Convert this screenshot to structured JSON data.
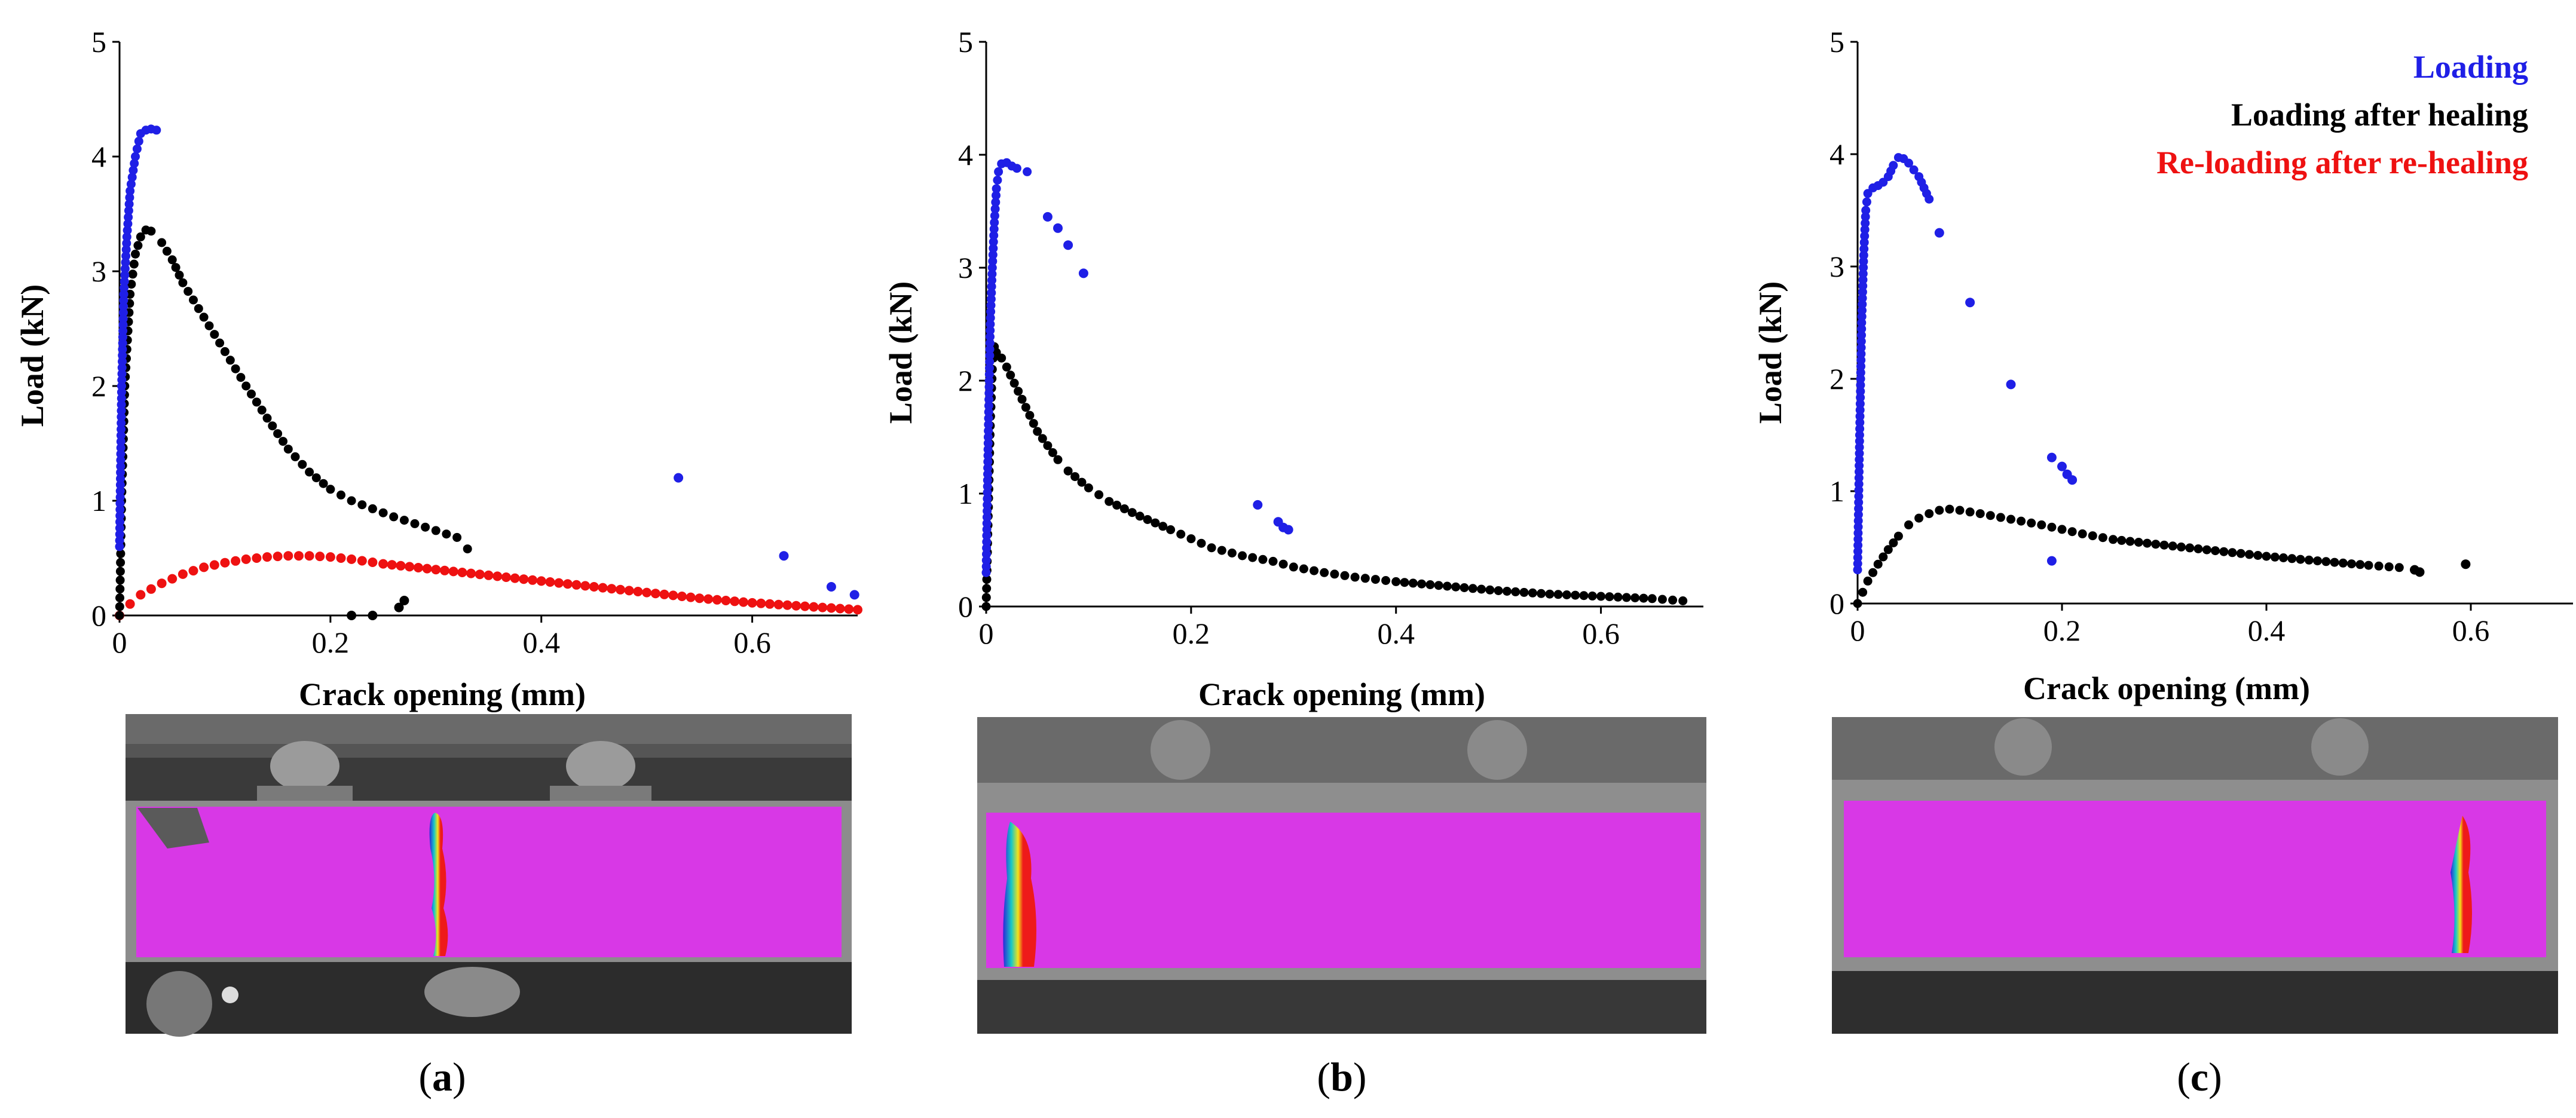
{
  "colors": {
    "loading": "#1f1fe6",
    "healing": "#000000",
    "reloading": "#ee1111",
    "dic_bg": "#d838e6"
  },
  "chart_data": [
    {
      "type": "scatter",
      "panel": "a",
      "caption": [
        "(",
        "a",
        ")"
      ],
      "xlabel": "Crack opening (mm)",
      "ylabel": "Load (kN)",
      "xlim": [
        0,
        0.7
      ],
      "ylim": [
        0,
        5
      ],
      "xticks": [
        "0",
        "0.2",
        "0.4",
        "0.6"
      ],
      "yticks": [
        "0",
        "1",
        "2",
        "3",
        "4",
        "5"
      ],
      "legend": null,
      "series": [
        {
          "name": "Loading",
          "kind": "ramp",
          "x": [
            0,
            0.002,
            0.004,
            0.007,
            0.01,
            0.015,
            0.02,
            0.025,
            0.03,
            0.035
          ],
          "y": [
            0.6,
            2.0,
            2.8,
            3.3,
            3.7,
            4.0,
            4.2,
            4.23,
            4.24,
            4.23
          ],
          "extra_x": [
            0.53,
            0.63,
            0.675,
            0.697
          ],
          "extra_y": [
            1.2,
            0.52,
            0.25,
            0.18
          ]
        },
        {
          "name": "Loading after healing",
          "kind": "curve",
          "x": [
            0,
            0.002,
            0.005,
            0.01,
            0.015,
            0.02,
            0.025,
            0.03,
            0.04,
            0.05,
            0.06,
            0.08,
            0.1,
            0.12,
            0.14,
            0.16,
            0.18,
            0.2,
            0.22,
            0.24,
            0.26,
            0.28,
            0.3,
            0.32,
            0.33
          ],
          "y": [
            0,
            1.0,
            2.0,
            2.8,
            3.15,
            3.3,
            3.36,
            3.35,
            3.25,
            3.1,
            2.9,
            2.6,
            2.3,
            2.0,
            1.72,
            1.45,
            1.25,
            1.1,
            1.0,
            0.93,
            0.86,
            0.8,
            0.74,
            0.68,
            0.58
          ],
          "extra_x": [
            0.22,
            0.24,
            0.265,
            0.27
          ],
          "extra_y": [
            0.0,
            0.0,
            0.07,
            0.13
          ]
        },
        {
          "name": "Re-loading after re-healing",
          "kind": "curve",
          "x": [
            0,
            0.01,
            0.02,
            0.04,
            0.06,
            0.08,
            0.1,
            0.12,
            0.14,
            0.16,
            0.18,
            0.2,
            0.22,
            0.25,
            0.3,
            0.35,
            0.4,
            0.45,
            0.5,
            0.55,
            0.6,
            0.65,
            0.7
          ],
          "y": [
            0,
            0.1,
            0.18,
            0.28,
            0.36,
            0.42,
            0.46,
            0.49,
            0.51,
            0.52,
            0.52,
            0.51,
            0.49,
            0.45,
            0.4,
            0.35,
            0.3,
            0.25,
            0.2,
            0.15,
            0.11,
            0.08,
            0.05
          ],
          "extra_x": [],
          "extra_y": []
        }
      ]
    },
    {
      "type": "scatter",
      "panel": "b",
      "caption": [
        "(",
        "b",
        ")"
      ],
      "xlabel": "Crack opening (mm)",
      "ylabel": "Load (kN)",
      "xlim": [
        0,
        0.7
      ],
      "ylim": [
        0,
        5
      ],
      "xticks": [
        "0",
        "0.2",
        "0.4",
        "0.6"
      ],
      "yticks": [
        "0",
        "1",
        "2",
        "3",
        "4",
        "5"
      ],
      "legend": null,
      "series": [
        {
          "name": "Loading",
          "kind": "ramp",
          "x": [
            0,
            0.002,
            0.004,
            0.006,
            0.008,
            0.01,
            0.012,
            0.015,
            0.02,
            0.025,
            0.03,
            0.04
          ],
          "y": [
            0.3,
            1.5,
            2.5,
            3.0,
            3.4,
            3.7,
            3.85,
            3.92,
            3.93,
            3.9,
            3.88,
            3.85
          ],
          "extra_x": [
            0.06,
            0.07,
            0.08,
            0.095,
            0.265,
            0.285,
            0.29,
            0.295
          ],
          "extra_y": [
            3.45,
            3.35,
            3.2,
            2.95,
            0.9,
            0.75,
            0.7,
            0.68
          ]
        },
        {
          "name": "Loading after healing",
          "kind": "curve",
          "x": [
            0,
            0.002,
            0.004,
            0.006,
            0.008,
            0.01,
            0.015,
            0.02,
            0.05,
            0.07,
            0.08,
            0.1,
            0.12,
            0.15,
            0.18,
            0.2,
            0.22,
            0.25,
            0.28,
            0.3,
            0.33,
            0.36,
            0.4,
            0.45,
            0.5,
            0.55,
            0.6,
            0.65,
            0.68
          ],
          "y": [
            0,
            0.8,
            1.6,
            2.1,
            2.3,
            2.25,
            2.2,
            2.12,
            1.55,
            1.3,
            1.2,
            1.05,
            0.93,
            0.8,
            0.68,
            0.6,
            0.52,
            0.45,
            0.4,
            0.35,
            0.3,
            0.26,
            0.22,
            0.18,
            0.14,
            0.11,
            0.09,
            0.07,
            0.05
          ],
          "extra_x": [],
          "extra_y": []
        }
      ]
    },
    {
      "type": "scatter",
      "panel": "c",
      "caption": [
        "(",
        "c",
        ")"
      ],
      "xlabel": "Crack opening (mm)",
      "ylabel": "Load (kN)",
      "xlim": [
        0,
        0.7
      ],
      "ylim": [
        0,
        5
      ],
      "xticks": [
        "0",
        "0.2",
        "0.4",
        "0.6"
      ],
      "yticks": [
        "0",
        "1",
        "2",
        "3",
        "4",
        "5"
      ],
      "legend": {
        "position": "top-right",
        "entries": [
          "Loading",
          "Loading after healing",
          "Re-loading after re-healing"
        ]
      },
      "series": [
        {
          "name": "Loading",
          "kind": "ramp",
          "x": [
            0,
            0.002,
            0.004,
            0.006,
            0.008,
            0.01,
            0.015,
            0.02,
            0.025,
            0.03,
            0.035,
            0.04,
            0.045,
            0.05,
            0.06,
            0.07
          ],
          "y": [
            0.3,
            1.5,
            2.5,
            3.1,
            3.5,
            3.65,
            3.7,
            3.72,
            3.75,
            3.8,
            3.9,
            3.97,
            3.96,
            3.92,
            3.8,
            3.6
          ],
          "extra_x": [
            0.08,
            0.11,
            0.15,
            0.19,
            0.2,
            0.205,
            0.21,
            0.19
          ],
          "extra_y": [
            3.3,
            2.68,
            1.95,
            1.3,
            1.22,
            1.15,
            1.1,
            0.38
          ]
        },
        {
          "name": "Loading after healing",
          "kind": "curve",
          "x": [
            0,
            0.005,
            0.01,
            0.02,
            0.03,
            0.04,
            0.05,
            0.06,
            0.07,
            0.08,
            0.09,
            0.1,
            0.12,
            0.15,
            0.18,
            0.2,
            0.22,
            0.25,
            0.3,
            0.35,
            0.4,
            0.45,
            0.5,
            0.53
          ],
          "y": [
            0,
            0.1,
            0.2,
            0.35,
            0.48,
            0.6,
            0.7,
            0.76,
            0.8,
            0.83,
            0.84,
            0.83,
            0.8,
            0.75,
            0.7,
            0.66,
            0.62,
            0.57,
            0.52,
            0.47,
            0.42,
            0.38,
            0.34,
            0.32
          ],
          "extra_x": [
            0.545,
            0.55,
            0.595
          ],
          "extra_y": [
            0.3,
            0.28,
            0.35
          ]
        }
      ]
    }
  ]
}
